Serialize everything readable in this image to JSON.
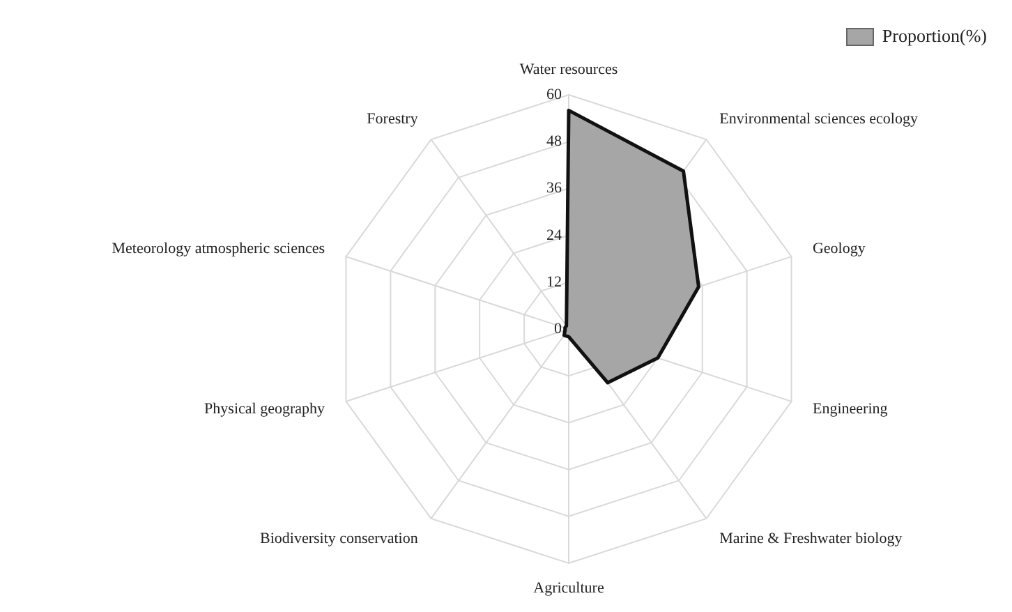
{
  "chart_data": {
    "type": "radar",
    "categories": [
      "Water resources",
      "Environmental sciences ecology",
      "Geology",
      "Engineering",
      "Marine & Freshwater biology",
      "Agriculture",
      "Biodiversity conservation",
      "Physical geography",
      "Meteorology atmospheric sciences",
      "Forestry"
    ],
    "series": [
      {
        "name": "Proportion(%)",
        "color": "#a6a6a6",
        "values": [
          56,
          50,
          35,
          24,
          17,
          2,
          2,
          1,
          1,
          1
        ]
      }
    ],
    "ylim": [
      0,
      60
    ],
    "yticks": [
      0,
      12,
      24,
      36,
      48,
      60
    ],
    "grid": true,
    "legend": "top right",
    "marker": "none"
  }
}
